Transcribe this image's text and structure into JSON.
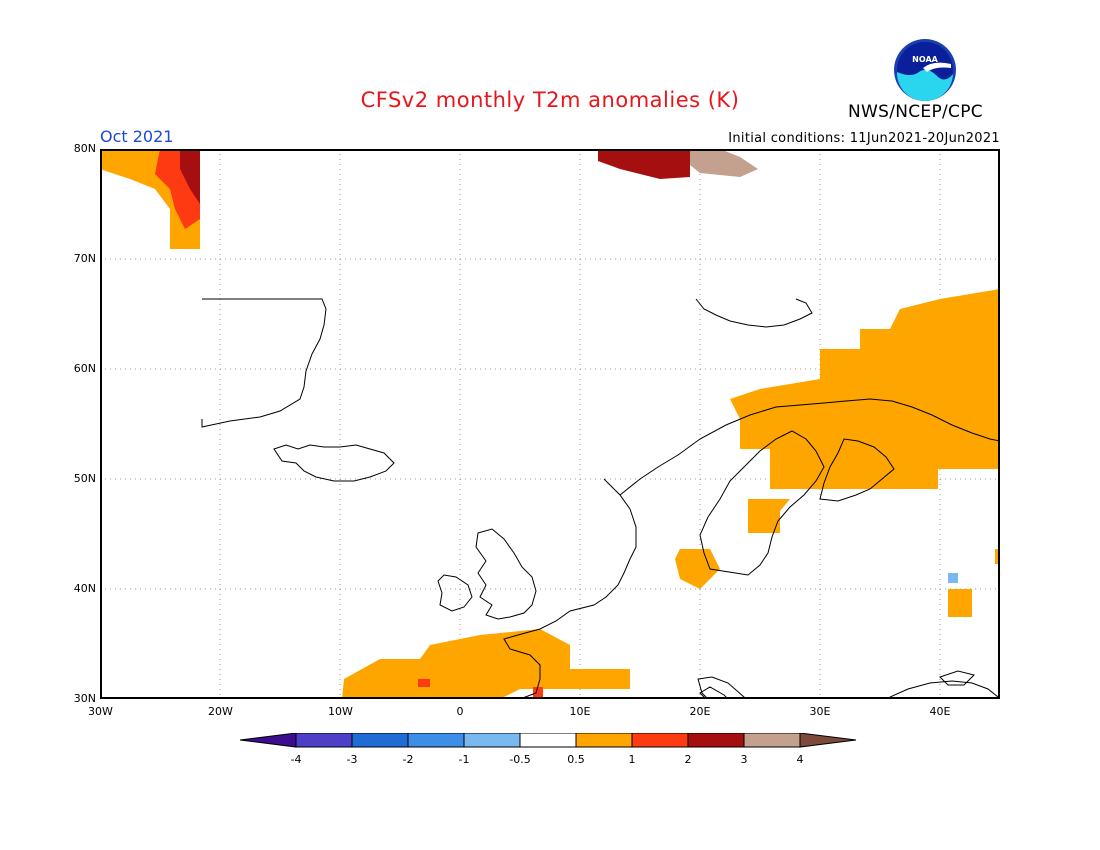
{
  "title": "CFSv2 monthly T2m anomalies (K)",
  "valid_month": "Oct 2021",
  "initial_conditions": "Initial conditions: 11Jun2021-20Jun2021",
  "agency": "NWS/NCEP/CPC",
  "logo_text": "NOAA",
  "logo_icon": "noaa-logo-icon",
  "map": {
    "lon_range": [
      -30,
      45
    ],
    "lat_range": [
      30,
      80
    ],
    "lon_ticks": [
      {
        "value": -30,
        "label": "30W"
      },
      {
        "value": -20,
        "label": "20W"
      },
      {
        "value": -10,
        "label": "10W"
      },
      {
        "value": 0,
        "label": "0"
      },
      {
        "value": 10,
        "label": "10E"
      },
      {
        "value": 20,
        "label": "20E"
      },
      {
        "value": 30,
        "label": "30E"
      },
      {
        "value": 40,
        "label": "40E"
      }
    ],
    "lat_ticks": [
      {
        "value": 30,
        "label": "30N"
      },
      {
        "value": 40,
        "label": "40N"
      },
      {
        "value": 50,
        "label": "50N"
      },
      {
        "value": 60,
        "label": "60N"
      },
      {
        "value": 70,
        "label": "70N"
      },
      {
        "value": 80,
        "label": "80N"
      }
    ],
    "grid": true
  },
  "colorbar": {
    "colors": [
      "#3d0c8f",
      "#4e3fc9",
      "#1f6cd6",
      "#3d8ee6",
      "#7ab8f0",
      "#ffffff",
      "#ffa500",
      "#fe3a12",
      "#a50f0f",
      "#c4a08f",
      "#7b4a3a"
    ],
    "labels": [
      "-4",
      "-3",
      "-2",
      "-1",
      "-0.5",
      "0.5",
      "1",
      "2",
      "3",
      "4"
    ]
  },
  "anomaly_colors": {
    "orange": "#ffa500",
    "red": "#fe3a12",
    "darkred": "#a50f0f",
    "tan": "#c4a08f",
    "lightblue": "#7ab8f0"
  }
}
